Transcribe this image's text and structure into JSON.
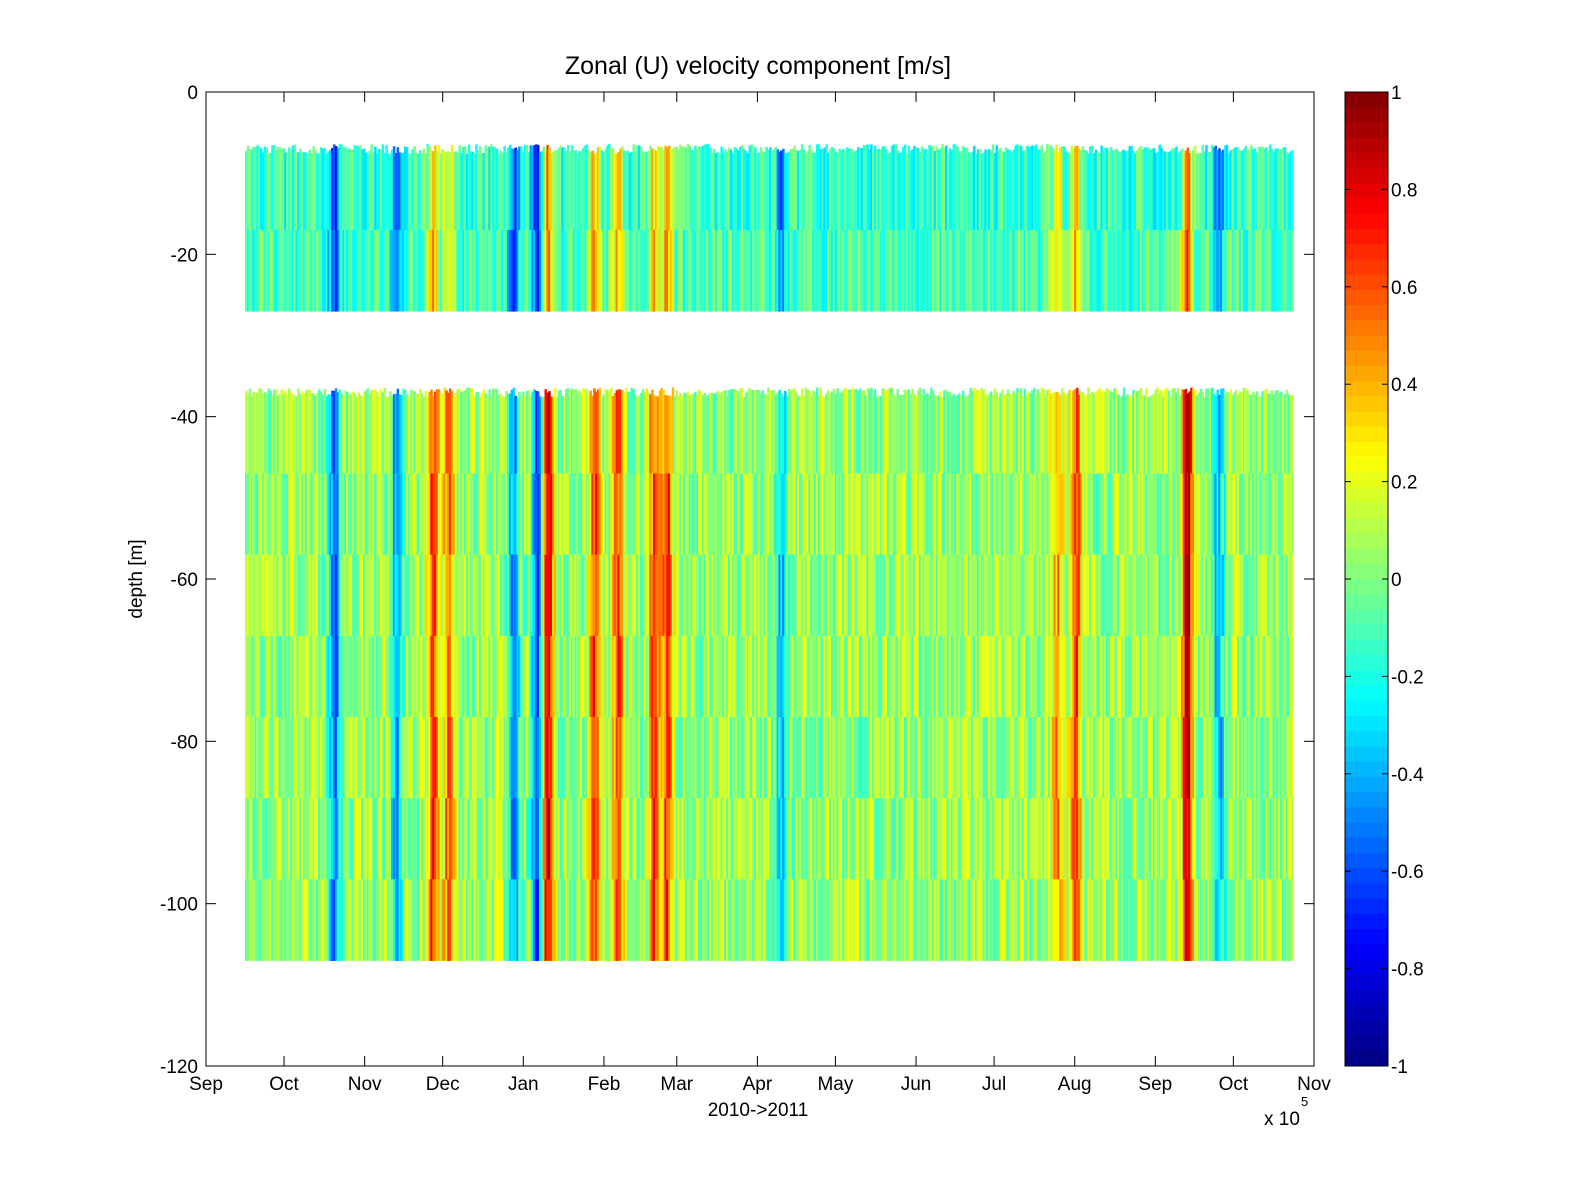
{
  "chart_data": {
    "type": "heatmap",
    "title": "Zonal (U) velocity component [m/s]",
    "xlabel": "2010->2011",
    "ylabel": "depth [m]",
    "x_multiplier_label": "x 10",
    "x_multiplier_exponent": "5",
    "x_ticks": [
      "Sep",
      "Oct",
      "Nov",
      "Dec",
      "Jan",
      "Feb",
      "Mar",
      "Apr",
      "May",
      "Jun",
      "Jul",
      "Aug",
      "Sep",
      "Oct",
      "Nov"
    ],
    "xlim": [
      "2010-09-01",
      "2011-11-01"
    ],
    "data_x_range": [
      "2010-09-16",
      "2011-10-24"
    ],
    "ylim": [
      -120,
      0
    ],
    "y_ticks": [
      0,
      -20,
      -40,
      -60,
      -80,
      -100,
      -120
    ],
    "colorbar": {
      "colormap": "jet",
      "clim": [
        -1,
        1
      ],
      "ticks": [
        1,
        0.8,
        0.6,
        0.4,
        0.2,
        0,
        -0.2,
        -0.4,
        -0.6,
        -0.8,
        -1
      ]
    },
    "grid": false,
    "depth_bands": [
      {
        "top": -7,
        "bottom": -27,
        "base_value": -0.1,
        "variability": 0.18
      },
      {
        "top": -37,
        "bottom": -107,
        "base_value": 0.05,
        "variability": 0.2
      }
    ],
    "velocity_events": [
      {
        "date": "2010-10-20",
        "value": -0.6
      },
      {
        "date": "2010-11-13",
        "value": -0.5
      },
      {
        "date": "2010-11-27",
        "value": 0.6
      },
      {
        "date": "2010-12-03",
        "value": 0.5
      },
      {
        "date": "2010-12-28",
        "value": -0.55
      },
      {
        "date": "2011-01-06",
        "value": -0.7
      },
      {
        "date": "2011-01-10",
        "value": 0.8
      },
      {
        "date": "2011-01-28",
        "value": 0.6
      },
      {
        "date": "2011-02-06",
        "value": 0.55
      },
      {
        "date": "2011-02-20",
        "value": 0.55
      },
      {
        "date": "2011-02-25",
        "value": 0.6
      },
      {
        "date": "2011-04-10",
        "value": -0.4
      },
      {
        "date": "2011-07-25",
        "value": 0.4
      },
      {
        "date": "2011-08-01",
        "value": 0.6
      },
      {
        "date": "2011-09-13",
        "value": 0.85
      },
      {
        "date": "2011-09-25",
        "value": -0.45
      }
    ]
  }
}
